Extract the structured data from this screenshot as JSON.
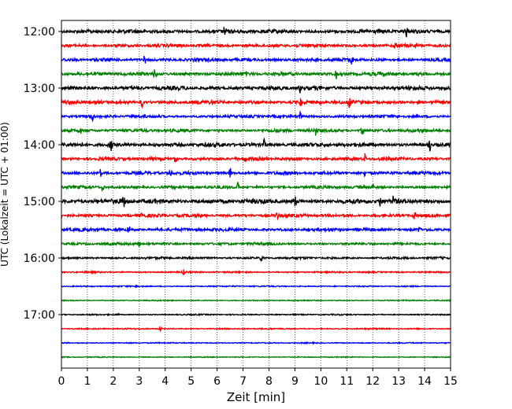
{
  "chart_data": {
    "type": "line",
    "title": "",
    "xlabel": "Zeit  [min]",
    "ylabel": "UTC (Lokalzeit = UTC + 01:00)",
    "xlim": [
      0,
      15
    ],
    "x_ticks": [
      "0",
      "1",
      "2",
      "3",
      "4",
      "5",
      "6",
      "7",
      "8",
      "9",
      "10",
      "11",
      "12",
      "13",
      "14",
      "15"
    ],
    "y_ticks": [
      "12:00",
      "13:00",
      "14:00",
      "15:00",
      "16:00",
      "17:00"
    ],
    "trace_interval_minutes": 15,
    "trace_color_cycle": [
      "#000000",
      "#ff0000",
      "#0000ff",
      "#008000"
    ],
    "grid": "vertical dotted lines",
    "series": [
      {
        "start": "12:00",
        "relative_amplitude": 1.2,
        "spike_minutes": [
          6.3,
          13.3
        ]
      },
      {
        "start": "12:15",
        "relative_amplitude": 1.0,
        "spike_minutes": [
          12.9
        ]
      },
      {
        "start": "12:30",
        "relative_amplitude": 1.0,
        "spike_minutes": [
          3.2,
          11.2
        ]
      },
      {
        "start": "12:45",
        "relative_amplitude": 1.1,
        "spike_minutes": [
          3.6,
          10.6
        ]
      },
      {
        "start": "13:00",
        "relative_amplitude": 1.2,
        "spike_minutes": [
          9.2
        ]
      },
      {
        "start": "13:15",
        "relative_amplitude": 1.1,
        "spike_minutes": [
          3.1,
          9.2,
          10.0,
          11.1
        ]
      },
      {
        "start": "13:30",
        "relative_amplitude": 0.9,
        "spike_minutes": [
          1.2,
          9.2
        ]
      },
      {
        "start": "13:45",
        "relative_amplitude": 1.0,
        "spike_minutes": [
          0.7,
          9.8,
          11.6
        ]
      },
      {
        "start": "14:00",
        "relative_amplitude": 1.2,
        "spike_minutes": [
          1.9,
          7.8,
          14.2
        ]
      },
      {
        "start": "14:15",
        "relative_amplitude": 1.0,
        "spike_minutes": [
          4.4,
          7.1,
          11.7
        ]
      },
      {
        "start": "14:30",
        "relative_amplitude": 1.0,
        "spike_minutes": [
          1.5,
          4.2,
          6.5,
          11.7
        ]
      },
      {
        "start": "14:45",
        "relative_amplitude": 0.9,
        "spike_minutes": [
          1.6,
          6.8,
          12.0
        ]
      },
      {
        "start": "15:00",
        "relative_amplitude": 1.4,
        "spike_minutes": [
          2.4,
          9.0,
          12.3,
          12.8
        ]
      },
      {
        "start": "15:15",
        "relative_amplitude": 1.0,
        "spike_minutes": [
          3.1,
          8.3,
          13.6
        ]
      },
      {
        "start": "15:30",
        "relative_amplitude": 1.0,
        "spike_minutes": [
          2.6,
          3.7,
          13.8
        ]
      },
      {
        "start": "15:45",
        "relative_amplitude": 0.8,
        "spike_minutes": [
          3.0
        ]
      },
      {
        "start": "16:00",
        "relative_amplitude": 0.7,
        "spike_minutes": [
          7.7
        ]
      },
      {
        "start": "16:15",
        "relative_amplitude": 0.5,
        "spike_minutes": [
          4.7
        ]
      },
      {
        "start": "16:30",
        "relative_amplitude": 0.4,
        "spike_minutes": [
          2.9
        ]
      },
      {
        "start": "16:45",
        "relative_amplitude": 0.35,
        "spike_minutes": []
      },
      {
        "start": "17:00",
        "relative_amplitude": 0.4,
        "spike_minutes": [
          2.2
        ]
      },
      {
        "start": "17:15",
        "relative_amplitude": 0.4,
        "spike_minutes": [
          3.8
        ]
      },
      {
        "start": "17:30",
        "relative_amplitude": 0.35,
        "spike_minutes": []
      },
      {
        "start": "17:45",
        "relative_amplitude": 0.3,
        "spike_minutes": []
      }
    ]
  }
}
